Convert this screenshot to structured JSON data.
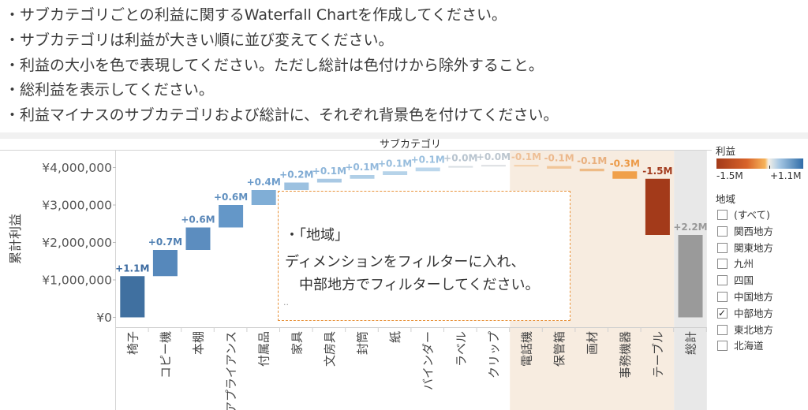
{
  "instructions": [
    "・サブカテゴリごとの利益に関するWaterfall Chartを作成してください。",
    "・サブカテゴリは利益が大きい順に並び変えてください。",
    "・利益の大小を色で表現してください。ただし総計は色付けから除外すること。",
    "・総利益を表示してください。",
    "・利益マイナスのサブカテゴリおよび総計に、それぞれ背景色を付けてください。"
  ],
  "callout": {
    "lines": [
      "・「地域」",
      "ディメンションをフィルターに入れ、",
      "　中部地方でフィルターしてください。"
    ],
    "more": ".."
  },
  "chart_data": {
    "type": "bar",
    "subtype": "waterfall",
    "title": "サブカテゴリ",
    "ylabel": "累計利益",
    "ylim": [
      -200000,
      4600000
    ],
    "yticks": [
      0,
      1000000,
      2000000,
      3000000,
      4000000
    ],
    "ytick_labels": [
      "¥0",
      "¥1,000,000",
      "¥2,000,000",
      "¥3,000,000",
      "¥4,000,000"
    ],
    "categories": [
      "椅子",
      "コピー機",
      "本棚",
      "アプライアンス",
      "付属品",
      "家具",
      "文房具",
      "封筒",
      "紙",
      "バインダー",
      "ラベル",
      "クリップ",
      "電話機",
      "保管箱",
      "画材",
      "事務機器",
      "テーブル",
      "総計"
    ],
    "start": [
      0,
      1100000,
      1800000,
      2400000,
      3000000,
      3400000,
      3600000,
      3700000,
      3800000,
      3900000,
      4000000,
      4040000,
      4070000,
      4040000,
      3970000,
      3900000,
      3700000,
      0
    ],
    "end": [
      1100000,
      1800000,
      2400000,
      3000000,
      3400000,
      3600000,
      3700000,
      3800000,
      3900000,
      4000000,
      4040000,
      4070000,
      4040000,
      3970000,
      3900000,
      3700000,
      2200000,
      2200000
    ],
    "labels": [
      "+1.1M",
      "+0.7M",
      "+0.6M",
      "+0.6M",
      "+0.4M",
      "+0.2M",
      "+0.1M",
      "+0.1M",
      "+0.1M",
      "+0.1M",
      "+0.0M",
      "+0.0M",
      "-0.1M",
      "-0.1M",
      "-0.1M",
      "-0.3M",
      "-1.5M",
      "+2.2M"
    ],
    "colors": [
      "#4070a0",
      "#5688bb",
      "#5c8dbf",
      "#6497c8",
      "#80aed6",
      "#9cc1e0",
      "#a9c9e4",
      "#b0cfe7",
      "#b6d3e9",
      "#bcd7ec",
      "#d8dee4",
      "#dcdfe2",
      "#f4cfa8",
      "#f1c699",
      "#eebb86",
      "#f0a04a",
      "#a33a1a",
      "#9a9a9a"
    ],
    "label_colors": [
      "#3b6aa0",
      "#4f7fb2",
      "#5a87b8",
      "#5f8fbf",
      "#6d9ccb",
      "#7faad3",
      "#8db5d9",
      "#93b9dc",
      "#97bddd",
      "#9bc0df",
      "#b8c4cf",
      "#bcc6cf",
      "#eec097",
      "#ecb98d",
      "#e9b07e",
      "#ec9a47",
      "#a23a1c",
      "#999999"
    ],
    "negative_bg": "#f7ece0",
    "total_bg": "#e8e8e8"
  },
  "legend": {
    "color_title": "利益",
    "min_label": "-1.5M",
    "max_label": "+1.1M",
    "filter_title": "地域",
    "items": [
      {
        "label": "(すべて)",
        "checked": false
      },
      {
        "label": "関西地方",
        "checked": false
      },
      {
        "label": "関東地方",
        "checked": false
      },
      {
        "label": "九州",
        "checked": false
      },
      {
        "label": "四国",
        "checked": false
      },
      {
        "label": "中国地方",
        "checked": false
      },
      {
        "label": "中部地方",
        "checked": true
      },
      {
        "label": "東北地方",
        "checked": false
      },
      {
        "label": "北海道",
        "checked": false
      }
    ]
  }
}
